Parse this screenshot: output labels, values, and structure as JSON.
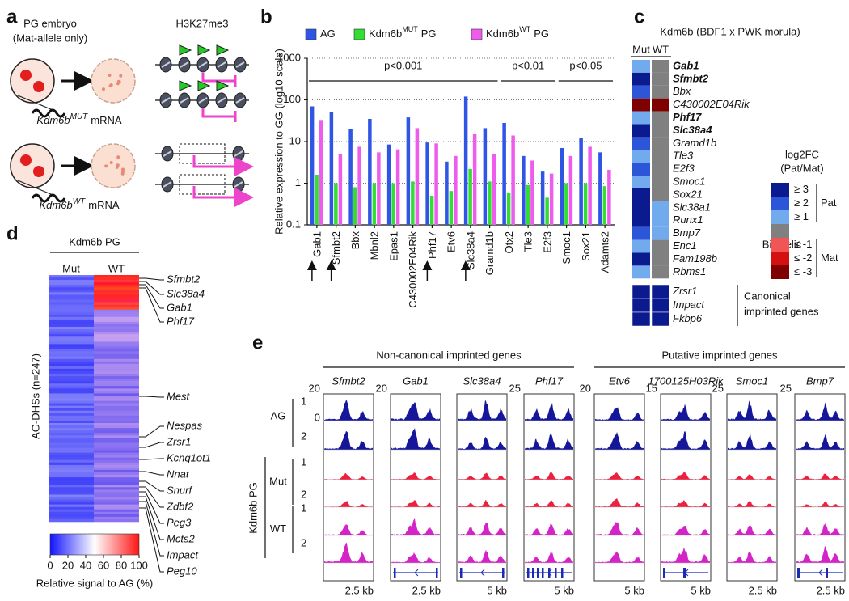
{
  "panel_labels": [
    "a",
    "b",
    "c",
    "d",
    "e"
  ],
  "panel_a": {
    "embryo_label": "PG embryo",
    "embryo_sublabel": "(Mat-allele only)",
    "mark_label": "H3K27me3",
    "mrna": [
      {
        "gene": "Kdm6b",
        "allele": "MUT",
        "suffix": "mRNA"
      },
      {
        "gene": "Kdm6b",
        "allele": "WT",
        "suffix": "mRNA"
      }
    ]
  },
  "chart_data": {
    "type": "bar",
    "ylabel": "Relative expression to GG (log10 scale)",
    "categories": [
      "Gab1",
      "Sfmbt2",
      "Bbx",
      "Mbnl2",
      "Epas1",
      "C430002E04Rik",
      "Phf17",
      "Etv6",
      "Slc38a4",
      "Gramd1b",
      "Otx2",
      "Tle3",
      "E2f3",
      "Smoc1",
      "Sox21",
      "Adamts2"
    ],
    "series": [
      {
        "name": "AG",
        "color": "#2f55e4",
        "values": [
          70,
          50,
          20,
          35,
          8.5,
          38,
          9.5,
          3.3,
          120,
          21,
          28,
          4.5,
          1.9,
          7,
          12,
          5.5
        ]
      },
      {
        "name": "Kdm6b",
        "name_sup": "MUT",
        "name_suffix": "PG",
        "color": "#33dd33",
        "values": [
          1.6,
          1.0,
          0.8,
          1.0,
          1.0,
          1.1,
          0.5,
          0.65,
          2.2,
          1.1,
          0.6,
          0.9,
          0.45,
          1.0,
          1.0,
          0.85
        ]
      },
      {
        "name": "Kdm6b",
        "name_sup": "WT",
        "name_suffix": "PG",
        "color": "#ee5cee",
        "values": [
          33,
          5,
          7.5,
          5.5,
          6.5,
          21,
          9,
          4.5,
          15,
          5,
          14,
          3.5,
          1.7,
          4.5,
          7.5,
          2.1
        ]
      }
    ],
    "ylim": [
      0.1,
      1000
    ],
    "yticks": [
      0.1,
      1,
      10,
      100,
      1000
    ],
    "log_scale": true,
    "grid": true,
    "annotations": [
      {
        "text": "p<0.001",
        "from": "Gab1",
        "to": "Gramd1b"
      },
      {
        "text": "p<0.01",
        "from": "Otx2",
        "to": "E2f3"
      },
      {
        "text": "p<0.05",
        "from": "Smoc1",
        "to": "Adamts2"
      }
    ],
    "marked": [
      "Gab1",
      "Sfmbt2",
      "Phf17",
      "Slc38a4"
    ]
  },
  "panel_c": {
    "title": "Kdm6b (BDF1 x PWK morula)",
    "columns": [
      "Mut",
      "WT"
    ],
    "genes": [
      {
        "name": "Gab1",
        "bold": true,
        "levels": [
          1,
          0
        ]
      },
      {
        "name": "Sfmbt2",
        "bold": true,
        "levels": [
          3,
          0
        ]
      },
      {
        "name": "Bbx",
        "bold": false,
        "levels": [
          2,
          0
        ]
      },
      {
        "name": "C430002E04Rik",
        "bold": false,
        "levels": [
          -3,
          -3
        ]
      },
      {
        "name": "Phf17",
        "bold": true,
        "levels": [
          1,
          0
        ]
      },
      {
        "name": "Slc38a4",
        "bold": true,
        "levels": [
          3,
          0
        ]
      },
      {
        "name": "Gramd1b",
        "bold": false,
        "levels": [
          2,
          0
        ]
      },
      {
        "name": "Tle3",
        "bold": false,
        "levels": [
          1,
          0
        ]
      },
      {
        "name": "E2f3",
        "bold": false,
        "levels": [
          2,
          0
        ]
      },
      {
        "name": "Smoc1",
        "bold": false,
        "levels": [
          1,
          0
        ]
      },
      {
        "name": "Sox21",
        "bold": false,
        "levels": [
          3,
          0
        ]
      },
      {
        "name": "Slc38a1",
        "bold": false,
        "levels": [
          3,
          1
        ]
      },
      {
        "name": "Runx1",
        "bold": false,
        "levels": [
          3,
          1
        ]
      },
      {
        "name": "Bmp7",
        "bold": false,
        "levels": [
          2,
          1
        ]
      },
      {
        "name": "Enc1",
        "bold": false,
        "levels": [
          1,
          0
        ]
      },
      {
        "name": "Fam198b",
        "bold": false,
        "levels": [
          3,
          0
        ]
      },
      {
        "name": "Rbms1",
        "bold": false,
        "levels": [
          1,
          0
        ]
      }
    ],
    "canonical": {
      "label": [
        "Canonical",
        "imprinted genes"
      ],
      "genes": [
        {
          "name": "Zrsr1",
          "levels": [
            3,
            3
          ]
        },
        {
          "name": "Impact",
          "levels": [
            3,
            3
          ]
        },
        {
          "name": "Fkbp6",
          "levels": [
            3,
            3
          ]
        }
      ]
    },
    "legend": {
      "title": [
        "log2FC",
        "(Pat/Mat)"
      ],
      "levels": [
        {
          "value": 3,
          "label": "≥ 3",
          "color": "#0b1a8e"
        },
        {
          "value": 2,
          "label": "≥ 2",
          "color": "#2d55d8"
        },
        {
          "value": 1,
          "label": "≥ 1",
          "color": "#72aaee"
        },
        {
          "value": 0,
          "label": "Bi-allelic",
          "color": "#808080"
        },
        {
          "value": -1,
          "label": "≤ -1",
          "color": "#f25555"
        },
        {
          "value": -2,
          "label": "≤ -2",
          "color": "#d41010"
        },
        {
          "value": -3,
          "label": "≤ -3",
          "color": "#7e0000"
        }
      ],
      "groups": [
        {
          "name": "Pat",
          "levels": [
            3,
            2,
            1
          ]
        },
        {
          "name": "Mat",
          "levels": [
            -1,
            -2,
            -3
          ]
        }
      ]
    }
  },
  "panel_d": {
    "header": "Kdm6b PG",
    "columns": [
      "Mut",
      "WT"
    ],
    "ylabel": "AG-DHSs (n=247)",
    "genes": [
      {
        "name": "Sfmbt2",
        "highlight": true
      },
      {
        "name": "Slc38a4",
        "highlight": true
      },
      {
        "name": "Gab1",
        "highlight": true
      },
      {
        "name": "Phf17",
        "highlight": true
      },
      {
        "name": "Mest",
        "highlight": false
      },
      {
        "name": "Nespas",
        "highlight": false
      },
      {
        "name": "Zrsr1",
        "highlight": false
      },
      {
        "name": "Kcnq1ot1",
        "highlight": false
      },
      {
        "name": "Nnat",
        "highlight": false
      },
      {
        "name": "Snurf",
        "highlight": false
      },
      {
        "name": "Zdbf2",
        "highlight": false
      },
      {
        "name": "Peg3",
        "highlight": false
      },
      {
        "name": "Mcts2",
        "highlight": false
      },
      {
        "name": "Impact",
        "highlight": false
      },
      {
        "name": "Peg10",
        "highlight": false
      }
    ],
    "colorbar": {
      "lim": [
        0,
        100
      ],
      "ticks": [
        0,
        20,
        40,
        60,
        80,
        100
      ],
      "label": "Relative signal to AG (%)",
      "colors": [
        "#1414ff",
        "#ffffff",
        "#ff1414"
      ]
    }
  },
  "panel_e": {
    "genotype_label": "Kdm6b PG",
    "zero_label": 0,
    "conditions": [
      {
        "name": "AG",
        "reps": [
          "1",
          "2"
        ]
      },
      {
        "name": "Mut",
        "reps": [
          "1",
          "2"
        ]
      },
      {
        "name": "WT",
        "reps": [
          "1",
          "2"
        ]
      }
    ],
    "groups": [
      {
        "title": "Non-canonical imprinted genes",
        "genes": [
          {
            "name": "Sfmbt2",
            "scale": 20,
            "kb": "2.5 kb"
          },
          {
            "name": "Gab1",
            "scale": 20,
            "kb": "2.5 kb"
          },
          {
            "name": "Slc38a4",
            "scale": null,
            "kb": "5 kb"
          },
          {
            "name": "Phf17",
            "scale": 25,
            "kb": "5 kb"
          }
        ]
      },
      {
        "title": "Putative imprinted genes",
        "genes": [
          {
            "name": "Etv6",
            "scale": 20,
            "kb": "5 kb"
          },
          {
            "name": "1700125H03Rik",
            "scale": 15,
            "kb": "5 kb"
          },
          {
            "name": "Smoc1",
            "scale": 25,
            "kb": "2.5 kb"
          },
          {
            "name": "Bmp7",
            "scale": 25,
            "kb": "2.5 kb"
          }
        ]
      }
    ],
    "track_colors": [
      "#16169a",
      "#ee2040",
      "#d424c8"
    ]
  }
}
